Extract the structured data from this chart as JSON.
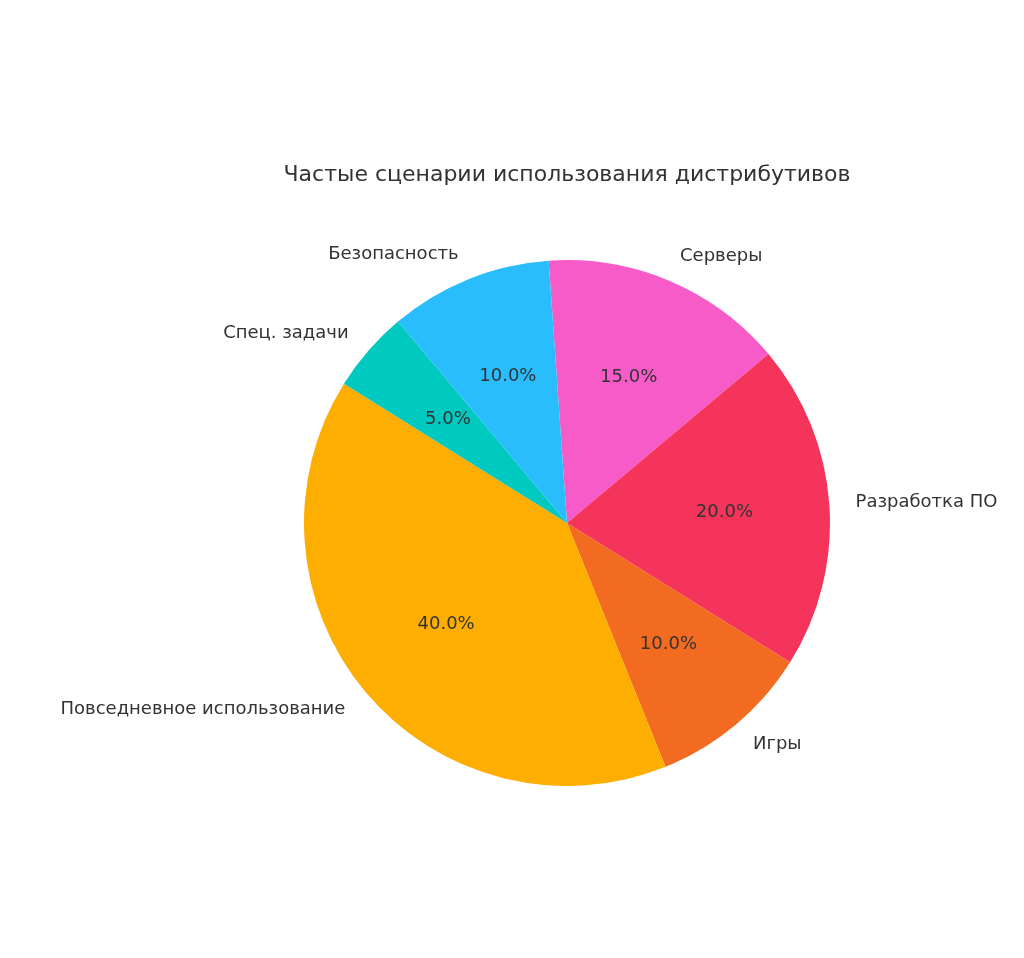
{
  "chart_data": {
    "type": "pie",
    "title": "Частые сценарии использования дистрибутивов",
    "categories": [
      "Серверы",
      "Разработка ПО",
      "Игры",
      "Повседневное использование",
      "Спец. задачи",
      "Безопасность"
    ],
    "values": [
      15,
      20,
      10,
      40,
      5,
      10
    ],
    "value_labels": [
      "15.0%",
      "20.0%",
      "10.0%",
      "40.0%",
      "5.0%",
      "10.0%"
    ],
    "colors": [
      "#f65bc7",
      "#f4345b",
      "#f26b21",
      "#fdae00",
      "#00c9c0",
      "#29bdfd"
    ]
  }
}
